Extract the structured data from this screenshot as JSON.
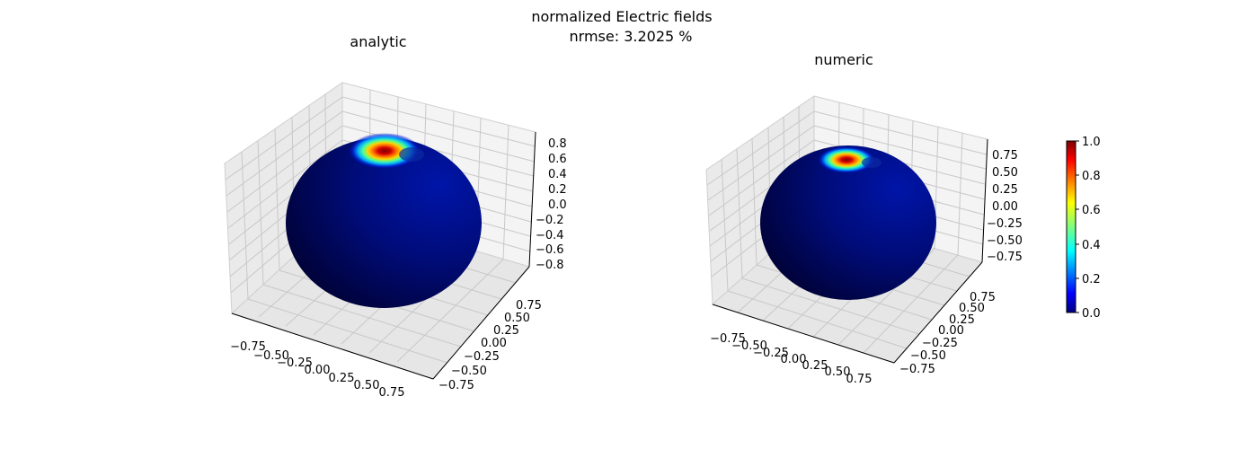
{
  "figure": {
    "title_line1": "normalized Electric fields",
    "title_line2": "nrmse: 3.2025 %"
  },
  "chart_data": [
    {
      "type": "surface3d",
      "title": "analytic",
      "x_ticks": [
        "−0.75",
        "−0.50",
        "−0.25",
        "0.00",
        "0.25",
        "0.50",
        "0.75"
      ],
      "y_ticks": [
        "−0.75",
        "−0.50",
        "−0.25",
        "0.00",
        "0.25",
        "0.50",
        "0.75"
      ],
      "z_ticks": [
        "−0.8",
        "−0.6",
        "−0.4",
        "−0.2",
        "0.0",
        "0.2",
        "0.4",
        "0.6",
        "0.8"
      ],
      "xlim": [
        -0.9,
        0.9
      ],
      "ylim": [
        -0.9,
        0.9
      ],
      "zlim": [
        -0.9,
        0.9
      ],
      "surface": "sphere",
      "hotspot": {
        "peak_value": 1.0,
        "background_value": 0.0
      }
    },
    {
      "type": "surface3d",
      "title": "numeric",
      "x_ticks": [
        "−0.75",
        "−0.50",
        "−0.25",
        "0.00",
        "0.25",
        "0.50",
        "0.75"
      ],
      "y_ticks": [
        "−0.75",
        "−0.50",
        "−0.25",
        "0.00",
        "0.25",
        "0.50",
        "0.75"
      ],
      "z_ticks": [
        "−0.75",
        "−0.50",
        "−0.25",
        "0.00",
        "0.25",
        "0.50",
        "0.75"
      ],
      "xlim": [
        -0.9,
        0.9
      ],
      "ylim": [
        -0.9,
        0.9
      ],
      "zlim": [
        -0.9,
        0.9
      ],
      "surface": "sphere",
      "hotspot": {
        "peak_value": 1.0,
        "background_value": 0.0
      }
    }
  ],
  "colorbar": {
    "colormap": "jet",
    "range": [
      0.0,
      1.0
    ],
    "ticks": [
      "0.0",
      "0.2",
      "0.4",
      "0.6",
      "0.8",
      "1.0"
    ],
    "colors": [
      "#00007f",
      "#0000ff",
      "#00ffff",
      "#7fff7f",
      "#ffff00",
      "#ff0000",
      "#7f0000"
    ]
  }
}
